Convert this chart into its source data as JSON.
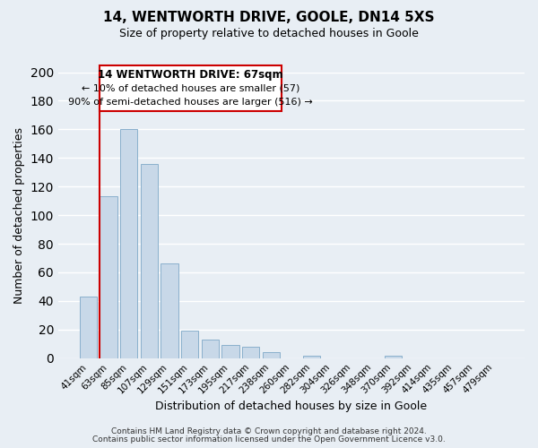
{
  "title": "14, WENTWORTH DRIVE, GOOLE, DN14 5XS",
  "subtitle": "Size of property relative to detached houses in Goole",
  "xlabel": "Distribution of detached houses by size in Goole",
  "ylabel": "Number of detached properties",
  "bar_labels": [
    "41sqm",
    "63sqm",
    "85sqm",
    "107sqm",
    "129sqm",
    "151sqm",
    "173sqm",
    "195sqm",
    "217sqm",
    "238sqm",
    "260sqm",
    "282sqm",
    "304sqm",
    "326sqm",
    "348sqm",
    "370sqm",
    "392sqm",
    "414sqm",
    "435sqm",
    "457sqm",
    "479sqm"
  ],
  "bar_values": [
    43,
    113,
    160,
    136,
    66,
    19,
    13,
    9,
    8,
    4,
    0,
    2,
    0,
    0,
    0,
    2,
    0,
    0,
    0,
    0,
    0
  ],
  "bar_color": "#c8d8e8",
  "bar_edge_color": "#8ab0cc",
  "vline_x_idx": 1,
  "vline_color": "#cc0000",
  "annotation_title": "14 WENTWORTH DRIVE: 67sqm",
  "annotation_line1": "← 10% of detached houses are smaller (57)",
  "annotation_line2": "90% of semi-detached houses are larger (516) →",
  "annotation_box_color": "#ffffff",
  "annotation_box_edge": "#cc0000",
  "ylim": [
    0,
    200
  ],
  "yticks": [
    0,
    20,
    40,
    60,
    80,
    100,
    120,
    140,
    160,
    180,
    200
  ],
  "footer1": "Contains HM Land Registry data © Crown copyright and database right 2024.",
  "footer2": "Contains public sector information licensed under the Open Government Licence v3.0.",
  "background_color": "#e8eef4",
  "plot_bg_color": "#e8eef4",
  "grid_color": "#ffffff"
}
